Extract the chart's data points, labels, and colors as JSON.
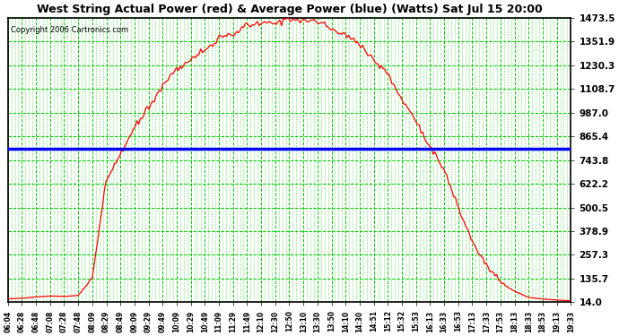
{
  "title": "West String Actual Power (red) & Average Power (blue) (Watts) Sat Jul 15 20:00",
  "copyright": "Copyright 2006 Cartronics.com",
  "plot_bg_color": "#ffffff",
  "fig_bg_color": "#ffffff",
  "grid_color": "#00CC00",
  "ymin": 14.0,
  "ymax": 1473.5,
  "yticks": [
    14.0,
    135.7,
    257.3,
    378.9,
    500.5,
    622.2,
    743.8,
    865.4,
    987.0,
    1108.7,
    1230.3,
    1351.9,
    1473.5
  ],
  "avg_power": 800.0,
  "x_labels": [
    "06:04",
    "06:28",
    "06:48",
    "07:08",
    "07:28",
    "07:48",
    "08:09",
    "08:29",
    "08:49",
    "09:09",
    "09:29",
    "09:49",
    "10:09",
    "10:29",
    "10:49",
    "11:09",
    "11:29",
    "11:49",
    "12:10",
    "12:30",
    "12:50",
    "13:10",
    "13:30",
    "13:50",
    "14:10",
    "14:30",
    "14:51",
    "15:12",
    "15:32",
    "15:53",
    "16:13",
    "16:33",
    "16:53",
    "17:13",
    "17:33",
    "17:53",
    "18:13",
    "18:33",
    "18:53",
    "19:13",
    "19:33"
  ],
  "power_values": [
    30,
    35,
    40,
    42,
    45,
    50,
    130,
    630,
    780,
    900,
    1020,
    1130,
    1210,
    1280,
    1330,
    1370,
    1400,
    1430,
    1455,
    1460,
    1465,
    1460,
    1455,
    1430,
    1390,
    1340,
    1270,
    1180,
    1060,
    950,
    820,
    670,
    500,
    340,
    200,
    120,
    70,
    45,
    35,
    25,
    20
  ]
}
